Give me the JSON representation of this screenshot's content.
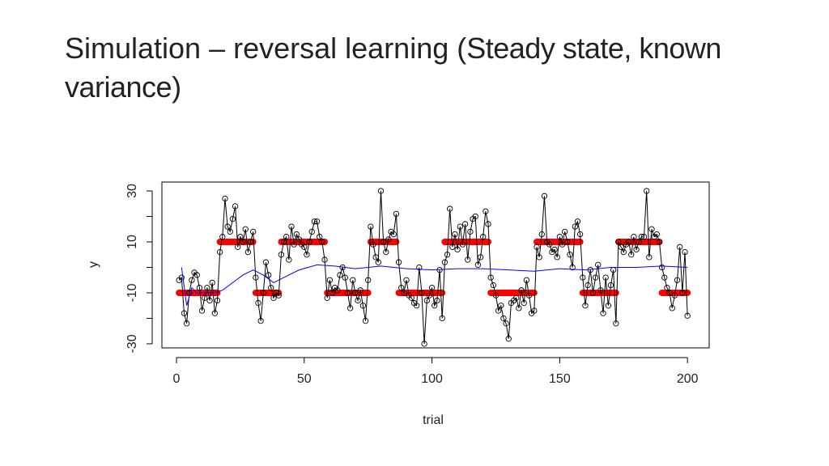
{
  "chart_data": {
    "type": "line",
    "title": {
      "plain": "Simulation – reversal learning (",
      "bold": "Steady state, known variance)"
    },
    "x_label": "trial",
    "y_label": "y",
    "xlim": [
      -5.7,
      208.5
    ],
    "ylim": [
      -31.6,
      33.5
    ],
    "xticks": [
      0,
      50,
      100,
      150,
      200
    ],
    "yticks": [
      -30,
      -10,
      10,
      30
    ],
    "yminor": [
      -20,
      0,
      20
    ],
    "observations": {
      "color": "#000000",
      "x": [
        1,
        2,
        3,
        4,
        5,
        6,
        7,
        8,
        9,
        10,
        11,
        12,
        13,
        14,
        15,
        16,
        17,
        18,
        19,
        20,
        21,
        22,
        23,
        24,
        25,
        26,
        27,
        28,
        29,
        30,
        31,
        32,
        33,
        34,
        35,
        36,
        37,
        38,
        39,
        40,
        41,
        42,
        43,
        44,
        45,
        46,
        47,
        48,
        49,
        50,
        51,
        52,
        53,
        54,
        55,
        56,
        57,
        58,
        59,
        60,
        61,
        62,
        63,
        64,
        65,
        66,
        67,
        68,
        69,
        70,
        71,
        72,
        73,
        74,
        75,
        76,
        77,
        78,
        79,
        80,
        81,
        82,
        83,
        84,
        85,
        86,
        87,
        88,
        89,
        90,
        91,
        92,
        93,
        94,
        95,
        96,
        97,
        98,
        99,
        100,
        101,
        102,
        103,
        104,
        105,
        106,
        107,
        108,
        109,
        110,
        111,
        112,
        113,
        114,
        115,
        116,
        117,
        118,
        119,
        120,
        121,
        122,
        123,
        124,
        125,
        126,
        127,
        128,
        129,
        130,
        131,
        132,
        133,
        134,
        135,
        136,
        137,
        138,
        139,
        140,
        141,
        142,
        143,
        144,
        145,
        146,
        147,
        148,
        149,
        150,
        151,
        152,
        153,
        154,
        155,
        156,
        157,
        158,
        159,
        160,
        161,
        162,
        163,
        164,
        165,
        166,
        167,
        168,
        169,
        170,
        171,
        172,
        173,
        174,
        175,
        176,
        177,
        178,
        179,
        180,
        181,
        182,
        183,
        184,
        185,
        186,
        187,
        188,
        189,
        190,
        191,
        192,
        193,
        194,
        195,
        196,
        197,
        198,
        199,
        200
      ],
      "values": [
        -5,
        -4,
        -18,
        -22,
        -10,
        -5,
        -2,
        -3,
        -8,
        -17,
        -12,
        -8,
        -13,
        -6,
        -18,
        -13,
        6,
        12,
        27,
        16,
        14,
        19,
        24,
        8,
        12,
        10,
        15,
        6,
        10,
        14,
        -4,
        -14,
        -21,
        -10,
        2,
        -3,
        -8,
        -12,
        -10,
        -11,
        5,
        10,
        12,
        3,
        16,
        9,
        13,
        11,
        9,
        8,
        5,
        10,
        14,
        18,
        18,
        12,
        10,
        3,
        -12,
        -5,
        -10,
        -8,
        -9,
        -3,
        0,
        -4,
        -10,
        -16,
        -5,
        -10,
        -13,
        -9,
        -15,
        -21,
        -5,
        16,
        9,
        4,
        2,
        30,
        10,
        6,
        11,
        14,
        13,
        21,
        2,
        -8,
        -10,
        -5,
        -11,
        -12,
        -14,
        -15,
        0,
        -10,
        -30,
        -13,
        -11,
        -8,
        -15,
        -13,
        -1,
        -20,
        2,
        5,
        23,
        8,
        13,
        7,
        16,
        9,
        17,
        3,
        14,
        19,
        20,
        1,
        4,
        12,
        22,
        17,
        -4,
        -7,
        -11,
        -17,
        -15,
        -20,
        -22,
        -28,
        -14,
        -13,
        -12,
        -16,
        -9,
        -14,
        -5,
        -11,
        -18,
        -17,
        8,
        4,
        13,
        28,
        10,
        9,
        6,
        7,
        4,
        12,
        9,
        14,
        10,
        5,
        0,
        16,
        18,
        13,
        -4,
        -15,
        -7,
        -1,
        -10,
        -4,
        1,
        -9,
        -18,
        -4,
        -15,
        -7,
        -1,
        -22,
        10,
        8,
        6,
        9,
        10,
        5,
        12,
        7,
        10,
        12,
        12,
        30,
        4,
        15,
        12,
        13,
        10,
        0,
        -4,
        -8,
        -10,
        -16,
        -11,
        -5,
        8,
        -10,
        6,
        -19
      ]
    },
    "true_mean": {
      "color": "#ff0000",
      "segments": [
        {
          "x": [
            1,
            16
          ],
          "y": -10
        },
        {
          "x": [
            17,
            30
          ],
          "y": 10
        },
        {
          "x": [
            31,
            40
          ],
          "y": -10
        },
        {
          "x": [
            41,
            58
          ],
          "y": 10
        },
        {
          "x": [
            59,
            75
          ],
          "y": -10
        },
        {
          "x": [
            76,
            86
          ],
          "y": 10
        },
        {
          "x": [
            87,
            104
          ],
          "y": -10
        },
        {
          "x": [
            105,
            122
          ],
          "y": 10
        },
        {
          "x": [
            123,
            140
          ],
          "y": -10
        },
        {
          "x": [
            141,
            158
          ],
          "y": 10
        },
        {
          "x": [
            159,
            172
          ],
          "y": -10
        },
        {
          "x": [
            173,
            189
          ],
          "y": 10
        },
        {
          "x": [
            190,
            200
          ],
          "y": -10
        }
      ]
    },
    "estimate": {
      "color": "#0000ff",
      "x": [
        2,
        4,
        6,
        8,
        10,
        14,
        18,
        22,
        26,
        30,
        34,
        38,
        42,
        48,
        55,
        62,
        70,
        80,
        90,
        100,
        110,
        120,
        130,
        140,
        150,
        160,
        170,
        180,
        190,
        200
      ],
      "values": [
        0,
        -15,
        -8,
        -10,
        -10,
        -10,
        -9,
        -6,
        -3,
        -1,
        -3,
        -6,
        -4,
        -1,
        1,
        0.5,
        -0.5,
        0.5,
        -0.5,
        -1,
        -0.5,
        -0.5,
        -1,
        -1.5,
        -0.5,
        -1,
        0,
        0,
        0.5,
        0
      ]
    }
  }
}
